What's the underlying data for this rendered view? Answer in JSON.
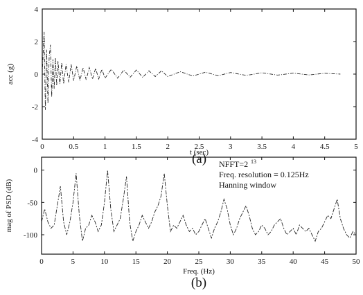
{
  "chart_data": [
    {
      "type": "line",
      "title": "",
      "xlabel": "t (sec)",
      "ylabel": "acc (g)",
      "caption": "(a)",
      "xlim": [
        0,
        5
      ],
      "ylim": [
        -4,
        4
      ],
      "xticks": [
        0,
        0.5,
        1,
        1.5,
        2,
        2.5,
        3,
        3.5,
        4,
        4.5,
        5
      ],
      "xtick_labels": [
        "0",
        "0.5",
        "1",
        "1.5",
        "2",
        "2.5",
        "3",
        "3.5",
        "4",
        "4.5",
        "5"
      ],
      "yticks": [
        -4,
        -2,
        0,
        2,
        4
      ],
      "ytick_labels": [
        "-4",
        "-2",
        "0",
        "2",
        "4"
      ],
      "grid": false,
      "legend": "none",
      "series": [
        {
          "x": [
            0.0,
            0.03,
            0.05,
            0.07,
            0.09,
            0.11,
            0.13,
            0.15,
            0.17,
            0.19,
            0.21,
            0.23,
            0.25,
            0.28,
            0.31,
            0.34,
            0.38,
            0.42,
            0.46,
            0.5,
            0.55,
            0.6,
            0.65,
            0.7,
            0.75,
            0.8,
            0.85,
            0.9,
            0.95,
            1.0,
            1.1,
            1.2,
            1.3,
            1.4,
            1.5,
            1.6,
            1.7,
            1.8,
            1.9,
            2.0,
            2.2,
            2.4,
            2.6,
            2.8,
            3.0,
            3.25,
            3.5,
            3.75,
            4.0,
            4.25,
            4.5,
            4.75
          ],
          "values": [
            0.0,
            2.6,
            -2.2,
            1.5,
            -1.8,
            1.1,
            1.8,
            -1.4,
            0.9,
            -0.9,
            1.0,
            -0.7,
            0.8,
            -0.6,
            0.7,
            -0.6,
            0.6,
            -0.5,
            0.6,
            -0.4,
            0.5,
            -0.4,
            0.4,
            -0.35,
            0.4,
            -0.3,
            0.35,
            -0.3,
            0.3,
            -0.25,
            0.3,
            -0.25,
            0.25,
            -0.2,
            0.25,
            -0.2,
            0.2,
            -0.15,
            0.2,
            -0.15,
            0.15,
            -0.12,
            0.12,
            -0.1,
            0.1,
            -0.08,
            0.08,
            -0.06,
            0.06,
            -0.05,
            0.05,
            0.0
          ]
        }
      ]
    },
    {
      "type": "line",
      "title": "",
      "xlabel": "Freq. (Hz)",
      "ylabel": "mag of PSD (dB)",
      "caption": "(b)",
      "xlim": [
        0,
        50
      ],
      "ylim": [
        -130,
        20
      ],
      "xticks": [
        0,
        5,
        10,
        15,
        20,
        25,
        30,
        35,
        40,
        45,
        50
      ],
      "xtick_labels": [
        "0",
        "5",
        "10",
        "15",
        "20",
        "25",
        "30",
        "35",
        "40",
        "45",
        "50"
      ],
      "yticks": [
        -100,
        -50,
        0
      ],
      "ytick_labels": [
        "-100",
        "-50",
        "0"
      ],
      "grid": false,
      "legend": "none",
      "annotations": [
        "NFFT=2",
        "13",
        "Freq. resolution = 0.125Hz",
        "Hanning window"
      ],
      "series": [
        {
          "x": [
            0,
            0.5,
            1,
            1.5,
            2,
            2.5,
            3,
            3.5,
            4,
            4.5,
            5,
            5.5,
            6,
            6.5,
            7,
            7.5,
            8,
            8.5,
            9,
            9.5,
            10,
            10.5,
            11,
            11.5,
            12,
            12.5,
            13,
            13.5,
            14,
            14.5,
            15,
            15.5,
            16,
            16.5,
            17,
            17.5,
            18,
            18.5,
            19,
            19.5,
            20,
            20.5,
            21,
            21.5,
            22,
            22.5,
            23,
            23.5,
            24,
            24.5,
            25,
            25.5,
            26,
            26.5,
            27,
            27.5,
            28,
            28.5,
            29,
            29.5,
            30,
            30.5,
            31,
            31.5,
            32,
            32.5,
            33,
            33.5,
            34,
            34.5,
            35,
            35.5,
            36,
            36.5,
            37,
            37.5,
            38,
            38.5,
            39,
            39.5,
            40,
            40.5,
            41,
            41.5,
            42,
            42.5,
            43,
            43.5,
            44,
            44.5,
            45,
            45.5,
            46,
            46.5,
            47,
            47.5,
            48,
            48.5,
            49,
            49.5,
            50
          ],
          "values": [
            -80,
            -60,
            -80,
            -90,
            -85,
            -55,
            -25,
            -80,
            -100,
            -80,
            -50,
            -5,
            -70,
            -110,
            -90,
            -85,
            -70,
            -80,
            -95,
            -85,
            -50,
            0,
            -60,
            -95,
            -85,
            -75,
            -45,
            -10,
            -80,
            -110,
            -95,
            -85,
            -70,
            -80,
            -90,
            -80,
            -65,
            -55,
            -40,
            -5,
            -55,
            -95,
            -85,
            -90,
            -80,
            -70,
            -85,
            -95,
            -90,
            -100,
            -95,
            -85,
            -75,
            -90,
            -105,
            -90,
            -80,
            -65,
            -45,
            -60,
            -85,
            -100,
            -90,
            -75,
            -65,
            -55,
            -70,
            -90,
            -100,
            -95,
            -85,
            -90,
            -100,
            -95,
            -85,
            -80,
            -75,
            -90,
            -100,
            -95,
            -90,
            -100,
            -85,
            -90,
            -95,
            -90,
            -100,
            -110,
            -95,
            -90,
            -80,
            -70,
            -75,
            -60,
            -45,
            -75,
            -90,
            -100,
            -105,
            -95,
            -100
          ]
        }
      ]
    }
  ]
}
